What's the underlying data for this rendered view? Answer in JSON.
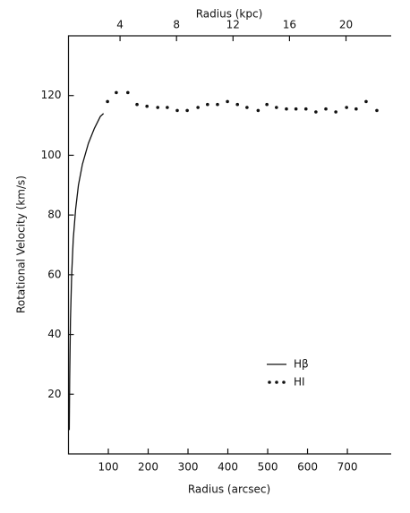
{
  "chart_data": {
    "type": "line",
    "xlabel": "Radius (arcsec)",
    "ylabel": "Rotational Velocity (km/s)",
    "x2label": "Radius (kpc)",
    "xlim": [
      0,
      810
    ],
    "xticks": [
      100,
      200,
      300,
      400,
      500,
      600,
      700
    ],
    "ylim": [
      0,
      140
    ],
    "yticks": [
      20,
      40,
      60,
      80,
      100,
      120
    ],
    "x2lim": [
      0.35,
      23.2
    ],
    "x2ticks": [
      4,
      8,
      12,
      16,
      20
    ],
    "legend": "lower right",
    "series": [
      {
        "name": "Hβ",
        "color": "#111111",
        "mode": "line",
        "x": [
          2,
          3,
          5,
          8,
          12,
          18,
          25,
          35,
          50,
          65,
          80,
          88
        ],
        "values": [
          8,
          25,
          45,
          60,
          72,
          82,
          90,
          97,
          104,
          109,
          113,
          114
        ]
      },
      {
        "name": "HI",
        "color": "#111111",
        "mode": "markers",
        "x": [
          98,
          120,
          149,
          172,
          197,
          224,
          248,
          273,
          298,
          325,
          349,
          374,
          399,
          424,
          448,
          476,
          498,
          522,
          547,
          571,
          596,
          621,
          646,
          671,
          698,
          722,
          747,
          774
        ],
        "values": [
          118,
          121,
          121,
          117,
          116.4,
          116,
          116,
          115,
          115,
          116,
          117,
          117,
          118,
          117,
          116,
          115,
          117,
          116,
          115.5,
          115.5,
          115.5,
          114.5,
          115.5,
          114.5,
          116,
          115.5,
          118,
          115
        ]
      }
    ]
  }
}
